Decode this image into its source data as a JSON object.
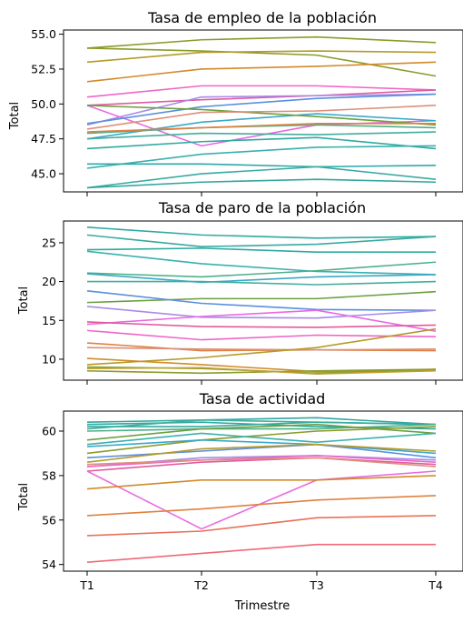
{
  "chart_data": [
    {
      "type": "line",
      "title": "Tasa de empleo de la población",
      "xlabel": "",
      "ylabel": "Total",
      "categories": [
        "T1",
        "T2",
        "T3",
        "T4"
      ],
      "ylim": [
        43.7,
        55.3
      ],
      "yticks": [
        "45.0",
        "47.5",
        "50.0",
        "52.5",
        "55.0"
      ],
      "ytick_values": [
        45.0,
        47.5,
        50.0,
        52.5,
        55.0
      ],
      "grid": false,
      "series": [
        {
          "color": "#8a9c2a",
          "values": [
            54.0,
            54.6,
            54.8,
            54.4
          ]
        },
        {
          "color": "#8a9c2a",
          "values": [
            54.0,
            53.8,
            53.5,
            52.0
          ]
        },
        {
          "color": "#b59a2a",
          "values": [
            53.0,
            53.7,
            53.8,
            53.7
          ]
        },
        {
          "color": "#d28a2a",
          "values": [
            51.6,
            52.5,
            52.7,
            53.0
          ]
        },
        {
          "color": "#f065c8",
          "values": [
            50.5,
            51.3,
            51.3,
            51.0
          ]
        },
        {
          "color": "#e15aa0",
          "values": [
            49.9,
            50.3,
            50.6,
            51.0
          ]
        },
        {
          "color": "#a88be8",
          "values": [
            48.5,
            50.5,
            50.6,
            50.7
          ]
        },
        {
          "color": "#e96ae3",
          "values": [
            49.9,
            47.0,
            48.5,
            48.8
          ]
        },
        {
          "color": "#5a8fe0",
          "values": [
            48.6,
            49.8,
            50.4,
            50.7
          ]
        },
        {
          "color": "#3aa8c8",
          "values": [
            47.5,
            48.7,
            49.3,
            48.8
          ]
        },
        {
          "color": "#6aa040",
          "values": [
            49.9,
            49.6,
            49.1,
            48.5
          ]
        },
        {
          "color": "#4db08a",
          "values": [
            47.9,
            48.3,
            48.5,
            48.3
          ]
        },
        {
          "color": "#44ad9c",
          "values": [
            47.5,
            47.9,
            47.8,
            48.0
          ]
        },
        {
          "color": "#2eaaa0",
          "values": [
            46.8,
            47.3,
            47.6,
            46.8
          ]
        },
        {
          "color": "#e08040",
          "values": [
            48.0,
            48.3,
            48.6,
            48.6
          ]
        },
        {
          "color": "#dd8f7a",
          "values": [
            48.2,
            49.4,
            49.5,
            49.9
          ]
        },
        {
          "color": "#3ab0b0",
          "values": [
            45.4,
            46.4,
            46.9,
            47.0
          ]
        },
        {
          "color": "#2ea8a8",
          "values": [
            45.7,
            45.7,
            45.5,
            45.6
          ]
        },
        {
          "color": "#36aaa0",
          "values": [
            44.0,
            45.0,
            45.5,
            44.6
          ]
        },
        {
          "color": "#32a6a0",
          "values": [
            44.0,
            44.4,
            44.6,
            44.4
          ]
        }
      ]
    },
    {
      "type": "line",
      "title": "Tasa de paro de la población",
      "xlabel": "",
      "ylabel": "Total",
      "categories": [
        "T1",
        "T2",
        "T3",
        "T4"
      ],
      "ylim": [
        7.3,
        27.8
      ],
      "yticks": [
        "10",
        "15",
        "20",
        "25"
      ],
      "ytick_values": [
        10,
        15,
        20,
        25
      ],
      "grid": false,
      "series": [
        {
          "color": "#2eaaa0",
          "values": [
            27.0,
            26.0,
            25.6,
            25.8
          ]
        },
        {
          "color": "#36aaa0",
          "values": [
            26.0,
            24.5,
            24.8,
            25.8
          ]
        },
        {
          "color": "#3ab0b0",
          "values": [
            23.9,
            22.3,
            21.3,
            20.9
          ]
        },
        {
          "color": "#2eaaa0",
          "values": [
            24.1,
            24.3,
            23.8,
            23.8
          ]
        },
        {
          "color": "#4db08a",
          "values": [
            21.1,
            20.6,
            21.4,
            22.5
          ]
        },
        {
          "color": "#3aa8c8",
          "values": [
            21.0,
            19.9,
            20.6,
            20.9
          ]
        },
        {
          "color": "#44ad9c",
          "values": [
            20.0,
            20.0,
            19.6,
            20.0
          ]
        },
        {
          "color": "#6aa040",
          "values": [
            17.3,
            17.8,
            17.8,
            18.7
          ]
        },
        {
          "color": "#5a8fe0",
          "values": [
            18.8,
            17.2,
            16.4,
            16.3
          ]
        },
        {
          "color": "#a88be8",
          "values": [
            16.8,
            15.4,
            15.3,
            16.3
          ]
        },
        {
          "color": "#e96ae3",
          "values": [
            14.5,
            15.5,
            16.3,
            13.6
          ]
        },
        {
          "color": "#e15aa0",
          "values": [
            14.8,
            14.2,
            14.1,
            14.4
          ]
        },
        {
          "color": "#f065c8",
          "values": [
            13.7,
            12.5,
            13.1,
            12.9
          ]
        },
        {
          "color": "#e08040",
          "values": [
            12.1,
            11.1,
            11.2,
            11.1
          ]
        },
        {
          "color": "#dd8f7a",
          "values": [
            11.5,
            11.3,
            11.2,
            11.3
          ]
        },
        {
          "color": "#b59a2a",
          "values": [
            9.3,
            10.2,
            11.5,
            13.9
          ]
        },
        {
          "color": "#d28a2a",
          "values": [
            10.1,
            9.3,
            8.4,
            8.5
          ]
        },
        {
          "color": "#8a9c2a",
          "values": [
            9.0,
            8.8,
            8.2,
            8.7
          ]
        },
        {
          "color": "#8a9c2a",
          "values": [
            8.5,
            8.2,
            8.5,
            8.7
          ]
        },
        {
          "color": "#c0a030",
          "values": [
            8.8,
            8.9,
            8.1,
            8.5
          ]
        }
      ]
    },
    {
      "type": "line",
      "title": "Tasa de actividad",
      "xlabel": "Trimestre",
      "ylabel": "Total",
      "categories": [
        "T1",
        "T2",
        "T3",
        "T4"
      ],
      "ylim": [
        53.7,
        60.9
      ],
      "yticks": [
        "54",
        "56",
        "58",
        "60"
      ],
      "ytick_values": [
        54,
        56,
        58,
        60
      ],
      "grid": false,
      "series": [
        {
          "color": "#32a6a0",
          "values": [
            60.4,
            60.5,
            60.6,
            60.3
          ]
        },
        {
          "color": "#2eaaa0",
          "values": [
            60.3,
            60.4,
            60.2,
            60.1
          ]
        },
        {
          "color": "#44ad9c",
          "values": [
            60.1,
            60.5,
            60.4,
            60.3
          ]
        },
        {
          "color": "#36aaa0",
          "values": [
            60.2,
            60.2,
            60.4,
            60.3
          ]
        },
        {
          "color": "#4db08a",
          "values": [
            60.0,
            60.1,
            60.1,
            60.3
          ]
        },
        {
          "color": "#6aa040",
          "values": [
            59.6,
            60.1,
            60.3,
            59.9
          ]
        },
        {
          "color": "#8a9c2a",
          "values": [
            59.0,
            59.6,
            60.0,
            60.2
          ]
        },
        {
          "color": "#3ab0b0",
          "values": [
            59.4,
            59.9,
            59.5,
            59.9
          ]
        },
        {
          "color": "#3aa8c8",
          "values": [
            59.3,
            59.6,
            59.4,
            59.0
          ]
        },
        {
          "color": "#5a8fe0",
          "values": [
            58.8,
            59.1,
            59.4,
            58.8
          ]
        },
        {
          "color": "#b59a2a",
          "values": [
            58.6,
            59.2,
            59.4,
            59.1
          ]
        },
        {
          "color": "#a88be8",
          "values": [
            58.4,
            58.8,
            58.9,
            58.7
          ]
        },
        {
          "color": "#e15aa0",
          "values": [
            58.2,
            58.6,
            58.8,
            58.5
          ]
        },
        {
          "color": "#f065c8",
          "values": [
            58.4,
            58.7,
            58.9,
            58.6
          ]
        },
        {
          "color": "#dd8f7a",
          "values": [
            58.5,
            58.7,
            58.8,
            58.4
          ]
        },
        {
          "color": "#e96ae3",
          "values": [
            58.2,
            55.6,
            57.8,
            58.2
          ]
        },
        {
          "color": "#d28a2a",
          "values": [
            57.4,
            57.8,
            57.8,
            58.0
          ]
        },
        {
          "color": "#e08040",
          "values": [
            56.2,
            56.5,
            56.9,
            57.1
          ]
        },
        {
          "color": "#e8705a",
          "values": [
            55.3,
            55.5,
            56.1,
            56.2
          ]
        },
        {
          "color": "#f06878",
          "values": [
            54.1,
            54.5,
            54.9,
            54.9
          ]
        }
      ]
    }
  ]
}
